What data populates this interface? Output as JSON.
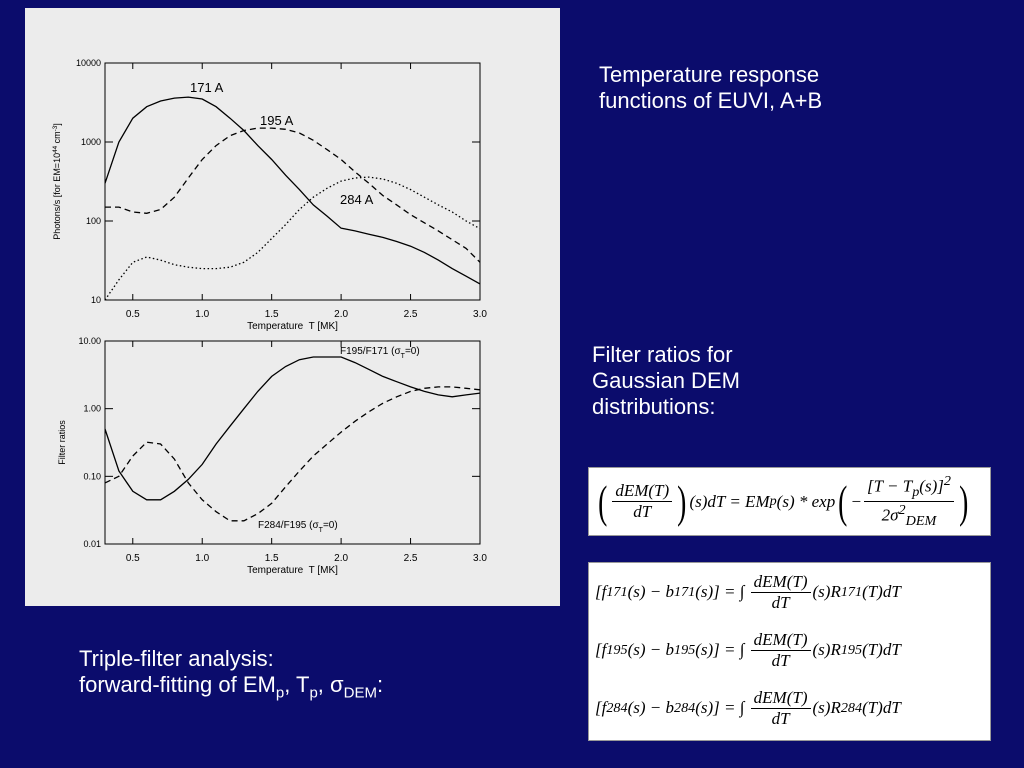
{
  "slide": {
    "response_text": [
      "Temperature response",
      "functions of EUVI, A+B"
    ],
    "ratio_text": [
      "Filter ratios for",
      "Gaussian DEM",
      "distributions:"
    ],
    "analysis_text": [
      [
        "Triple-filter analysis:"
      ],
      [
        "forward-fitting of EM",
        {
          "sub": "p"
        },
        ", T",
        {
          "sub": "p"
        },
        ", σ",
        {
          "sub": "DEM"
        },
        ":"
      ]
    ]
  },
  "equations": {
    "gaussian": [
      {
        "big": "("
      },
      {
        "num": [
          "dEM(T)"
        ],
        "den": [
          "dT"
        ]
      },
      {
        "big": ")"
      },
      "(s)dT = EM",
      {
        "sub": "p"
      },
      "(s) * exp",
      {
        "big": "("
      },
      "−",
      {
        "num": [
          "[T − T",
          {
            "sub": "p"
          },
          "(s)]",
          {
            "sup": "2"
          }
        ],
        "den": [
          "2σ",
          {
            "sup": "2"
          },
          {
            "sub": "DEM"
          }
        ]
      },
      {
        "big": ")"
      }
    ],
    "triple": [
      [
        "[f",
        {
          "sub": "171"
        },
        "(s) − b",
        {
          "sub": "171"
        },
        "(s)] = ∫ ",
        {
          "num": [
            "dEM(T)"
          ],
          "den": [
            "dT"
          ]
        },
        "(s)R",
        {
          "sub": "171"
        },
        "(T)dT"
      ],
      [
        "[f",
        {
          "sub": "195"
        },
        "(s) − b",
        {
          "sub": "195"
        },
        "(s)] = ∫ ",
        {
          "num": [
            "dEM(T)"
          ],
          "den": [
            "dT"
          ]
        },
        "(s)R",
        {
          "sub": "195"
        },
        "(T)dT"
      ],
      [
        "[f",
        {
          "sub": "284"
        },
        "(s) − b",
        {
          "sub": "284"
        },
        "(s)] = ∫ ",
        {
          "num": [
            "dEM(T)"
          ],
          "den": [
            "dT"
          ]
        },
        "(s)R",
        {
          "sub": "284"
        },
        "(T)dT"
      ]
    ]
  },
  "chart_data": [
    {
      "type": "line",
      "xlabel": "Temperature  T [MK]",
      "ylabel": [
        "Photons/s [for EM=10",
        {
          "sup": "44"
        },
        " cm",
        {
          "sup": "-3"
        },
        "]"
      ],
      "xlim": [
        0.3,
        3.0
      ],
      "ylim": [
        10,
        10000
      ],
      "log_y": true,
      "xticks": [
        0.5,
        {
          "value": 1,
          "label": "1.0"
        },
        1.5,
        {
          "value": 2,
          "label": "2.0"
        },
        2.5,
        {
          "value": 3,
          "label": "3.0"
        }
      ],
      "yticks": [
        10,
        100,
        1000,
        10000
      ],
      "x": [
        0.3,
        0.4,
        0.5,
        0.6,
        0.7,
        0.8,
        0.9,
        1.0,
        1.1,
        1.2,
        1.3,
        1.4,
        1.5,
        1.6,
        1.7,
        1.8,
        1.9,
        2.0,
        2.1,
        2.2,
        2.3,
        2.4,
        2.5,
        2.6,
        2.7,
        2.8,
        2.9,
        3.0
      ],
      "series": [
        {
          "name": "171 A",
          "color": "#000000",
          "dash": "solid",
          "values": [
            300,
            1000,
            2000,
            2800,
            3300,
            3600,
            3700,
            3500,
            2800,
            2000,
            1400,
            900,
            600,
            380,
            250,
            160,
            115,
            81,
            75,
            68,
            62,
            55,
            48,
            40,
            32,
            25,
            20,
            16
          ]
        },
        {
          "name": "195 A",
          "color": "#000000",
          "dash": "dashed",
          "values": [
            150,
            150,
            130,
            125,
            140,
            200,
            350,
            600,
            900,
            1200,
            1400,
            1500,
            1500,
            1450,
            1300,
            1050,
            800,
            600,
            420,
            300,
            210,
            160,
            120,
            95,
            75,
            58,
            45,
            30
          ]
        },
        {
          "name": "284 A",
          "color": "#000000",
          "dash": "dotted",
          "values": [
            10,
            18,
            30,
            35,
            32,
            28,
            26,
            25,
            25,
            26,
            30,
            40,
            60,
            90,
            140,
            200,
            260,
            320,
            350,
            360,
            340,
            300,
            250,
            200,
            160,
            130,
            100,
            80
          ]
        }
      ]
    },
    {
      "type": "line",
      "xlabel": "Temperature  T [MK]",
      "ylabel": "Filter ratios",
      "xlim": [
        0.3,
        3.0
      ],
      "ylim": [
        0.01,
        10
      ],
      "log_y": true,
      "xticks": [
        0.5,
        {
          "value": 1,
          "label": "1.0"
        },
        1.5,
        {
          "value": 2,
          "label": "2.0"
        },
        2.5,
        {
          "value": 3,
          "label": "3.0"
        }
      ],
      "yticks": [
        {
          "value": 0.01,
          "label": "0.01"
        },
        {
          "value": 0.1,
          "label": "0.10"
        },
        {
          "value": 1,
          "label": "1.00"
        },
        {
          "value": 10,
          "label": "10.00"
        }
      ],
      "x": [
        0.3,
        0.4,
        0.5,
        0.6,
        0.7,
        0.8,
        0.9,
        1.0,
        1.1,
        1.2,
        1.3,
        1.4,
        1.5,
        1.6,
        1.7,
        1.8,
        1.9,
        2.0,
        2.1,
        2.2,
        2.3,
        2.4,
        2.5,
        2.6,
        2.7,
        2.8,
        2.9,
        3.0
      ],
      "series": [
        {
          "name": [
            "F195/F171 (σ",
            {
              "sub": "T"
            },
            "=0)"
          ],
          "color": "#000000",
          "dash": "solid",
          "values": [
            0.5,
            0.12,
            0.06,
            0.045,
            0.045,
            0.06,
            0.09,
            0.15,
            0.3,
            0.55,
            1.0,
            1.8,
            3.0,
            4.2,
            5.3,
            5.8,
            5.8,
            5.8,
            4.8,
            3.8,
            3.0,
            2.5,
            2.1,
            1.8,
            1.6,
            1.5,
            1.6,
            1.7
          ]
        },
        {
          "name": [
            "F284/F195 (σ",
            {
              "sub": "T"
            },
            "=0)"
          ],
          "color": "#000000",
          "dash": "dashed",
          "values": [
            0.08,
            0.1,
            0.2,
            0.32,
            0.3,
            0.18,
            0.08,
            0.045,
            0.03,
            0.022,
            0.022,
            0.028,
            0.04,
            0.07,
            0.12,
            0.2,
            0.3,
            0.45,
            0.65,
            0.9,
            1.2,
            1.5,
            1.8,
            2.0,
            2.1,
            2.1,
            2.0,
            1.9
          ]
        }
      ]
    }
  ]
}
